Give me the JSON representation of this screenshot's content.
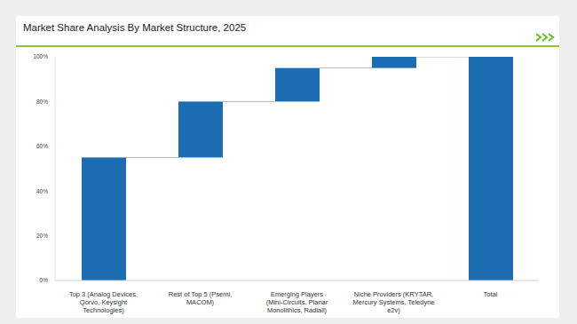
{
  "chart_data": {
    "type": "waterfall",
    "title": "Market Share Analysis By Market Structure, 2025",
    "categories": [
      "Top 3 (Analog Devices, Qorvo, Keysight Technologies)",
      "Rest of Top 5 (Psemi, MACOM)",
      "Emerging Players (Mini-Circuits, Planar Monolithics, Radiall)",
      "Niche Providers (KRYTAR, Mercury Systems, Teledyne e2v)",
      "Total"
    ],
    "values": [
      55,
      25,
      15,
      5,
      100
    ],
    "color": "#1b6cb0",
    "ylim": [
      0,
      100
    ],
    "yticks": [
      {
        "value": 0,
        "label": "0%"
      },
      {
        "value": 20,
        "label": "20%"
      },
      {
        "value": 40,
        "label": "40%"
      },
      {
        "value": 60,
        "label": "60%"
      },
      {
        "value": 80,
        "label": "80%"
      },
      {
        "value": 100,
        "label": "100%"
      }
    ],
    "grid": false
  }
}
